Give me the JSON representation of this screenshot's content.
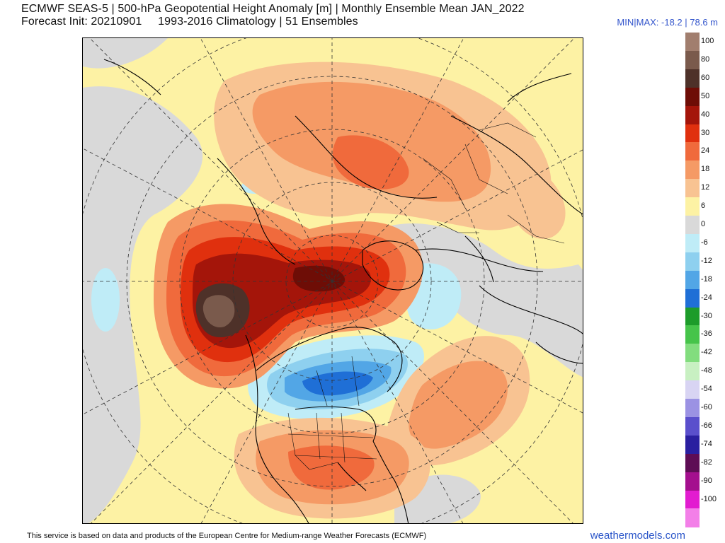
{
  "header": {
    "title_line1": "ECMWF SEAS-5 | 500-hPa Geopotential Height Anomaly [m] | Monthly Ensemble Mean JAN_2022",
    "title_line2": "Forecast Init: 20210901     1993-2016 Climatology | 51 Ensembles",
    "minmax": "MIN|MAX: -18.2 | 78.6 m"
  },
  "colorbar": [
    {
      "label": "100",
      "color": "#a17e6e"
    },
    {
      "label": "80",
      "color": "#7a5a4c"
    },
    {
      "label": "60",
      "color": "#4e3129"
    },
    {
      "label": "50",
      "color": "#6e0d06"
    },
    {
      "label": "40",
      "color": "#a4150a"
    },
    {
      "label": "30",
      "color": "#e0300e"
    },
    {
      "label": "24",
      "color": "#f06a3c"
    },
    {
      "label": "18",
      "color": "#f59a65"
    },
    {
      "label": "12",
      "color": "#f8c392"
    },
    {
      "label": "6",
      "color": "#fdf2a4"
    },
    {
      "label": "0",
      "color": "#d9d9d9"
    },
    {
      "label": "-6",
      "color": "#bfecf7"
    },
    {
      "label": "-12",
      "color": "#8ed0ef"
    },
    {
      "label": "-18",
      "color": "#52a6e6"
    },
    {
      "label": "-24",
      "color": "#1f6fd6"
    },
    {
      "label": "-30",
      "color": "#1d9c2a"
    },
    {
      "label": "-36",
      "color": "#46c44a"
    },
    {
      "label": "-42",
      "color": "#82dd7e"
    },
    {
      "label": "-48",
      "color": "#c8f0c2"
    },
    {
      "label": "-54",
      "color": "#d8d4f3"
    },
    {
      "label": "-60",
      "color": "#9b92e3"
    },
    {
      "label": "-66",
      "color": "#5a4fcc"
    },
    {
      "label": "-74",
      "color": "#2a1fa0"
    },
    {
      "label": "-82",
      "color": "#5e0d55"
    },
    {
      "label": "-90",
      "color": "#a40f8e"
    },
    {
      "label": "-100",
      "color": "#e21cd0"
    },
    {
      "label": "",
      "color": "#f37fe8"
    }
  ],
  "footer": {
    "credit": "This service is based on data and products of the European Centre for Medium-range Weather Forecasts (ECMWF)",
    "brand": "weathermodels.com"
  }
}
